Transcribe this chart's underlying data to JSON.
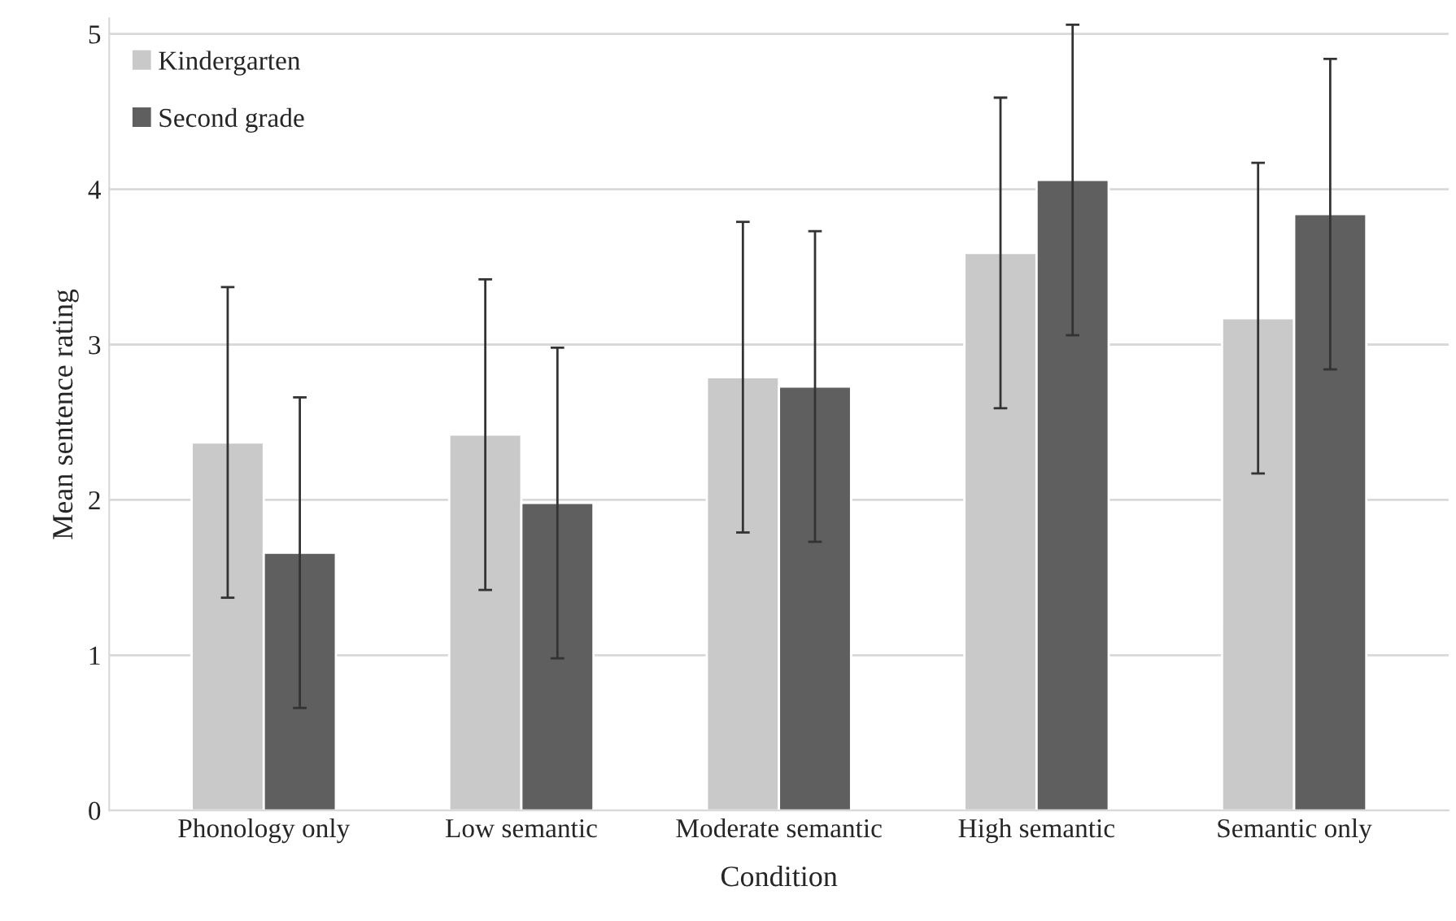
{
  "chart_data": {
    "type": "bar",
    "xlabel": "Condition",
    "ylabel": "Mean sentence rating",
    "categories": [
      "Phonology only",
      "Low semantic",
      "Moderate semantic",
      "High semantic",
      "Semantic only"
    ],
    "series": [
      {
        "name": "Kindergarten",
        "color": "#c9c9c9",
        "values": [
          2.37,
          2.42,
          2.79,
          3.59,
          3.17
        ],
        "errors": [
          1.0,
          1.0,
          1.0,
          1.0,
          1.0
        ]
      },
      {
        "name": "Second grade",
        "color": "#5f5f5f",
        "values": [
          1.66,
          1.98,
          2.73,
          4.06,
          3.84
        ],
        "errors": [
          1.0,
          1.0,
          1.0,
          1.0,
          1.0
        ]
      }
    ],
    "ylim": [
      0,
      5.1
    ],
    "yticks": [
      0,
      1,
      2,
      3,
      4,
      5
    ],
    "grid": "y",
    "legend": "top left"
  }
}
